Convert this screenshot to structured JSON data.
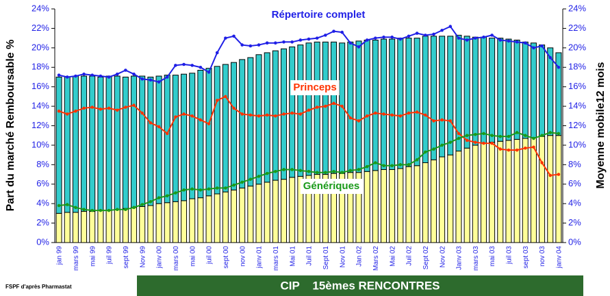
{
  "chart_data": {
    "type": "bar",
    "y_label": "Part du marché Remboursable %",
    "y2_label": "Moyenne mobile12 mois",
    "categories": [
      "jan 99",
      null,
      "mars 99",
      null,
      "mai 99",
      null,
      "juil 99",
      null,
      "sept 99",
      null,
      "Nov 99",
      null,
      "janv 00",
      null,
      "mars 00",
      null,
      "mai 00",
      null,
      "juil 00",
      null,
      "sept 00",
      null,
      "nov 00",
      null,
      "janv 01",
      null,
      "mars 01",
      null,
      "Mai 01",
      null,
      "Juil 01",
      null,
      "Sept 01",
      null,
      "Nov 01",
      null,
      "Jan 02",
      null,
      "Mars 02",
      null,
      "Mai 02",
      null,
      "Juil 02",
      null,
      "Sept 02",
      null,
      "Nov 02",
      null,
      "Janv 03",
      null,
      "mars 03",
      null,
      "mai 03",
      null,
      "juil 03",
      null,
      "sept 03",
      null,
      "nov 03",
      null,
      "janv 04"
    ],
    "ylim": [
      0,
      24
    ],
    "yticks": [
      {
        "value": 0,
        "label": "0%"
      },
      {
        "value": 2,
        "label": "2%"
      },
      {
        "value": 4,
        "label": "4%"
      },
      {
        "value": 6,
        "label": "6%"
      },
      {
        "value": 8,
        "label": "8%"
      },
      {
        "value": 10,
        "label": "10%"
      },
      {
        "value": 12,
        "label": "12%"
      },
      {
        "value": 14,
        "label": "14%"
      },
      {
        "value": 16,
        "label": "16%"
      },
      {
        "value": 18,
        "label": "18%"
      },
      {
        "value": 20,
        "label": "20%"
      },
      {
        "value": 22,
        "label": "22%"
      },
      {
        "value": 24,
        "label": "24%"
      }
    ],
    "y2lim": [
      0,
      24
    ],
    "y2ticks": [
      {
        "value": 0,
        "label": "0%"
      },
      {
        "value": 2,
        "label": "2%"
      },
      {
        "value": 4,
        "label": "4%"
      },
      {
        "value": 6,
        "label": "6%"
      },
      {
        "value": 8,
        "label": "8%"
      },
      {
        "value": 10,
        "label": "10%"
      },
      {
        "value": 12,
        "label": "12%"
      },
      {
        "value": 14,
        "label": "14%"
      },
      {
        "value": 16,
        "label": "16%"
      },
      {
        "value": 18,
        "label": "18%"
      },
      {
        "value": 20,
        "label": "20%"
      },
      {
        "value": 22,
        "label": "22%"
      },
      {
        "value": 24,
        "label": "24%"
      }
    ],
    "stacked": true,
    "series": [
      {
        "type": "bar",
        "color": "#ffff99",
        "values": [
          3.0,
          3.1,
          3.1,
          3.2,
          3.2,
          3.3,
          3.3,
          3.4,
          3.5,
          3.6,
          3.7,
          3.8,
          4.0,
          4.1,
          4.2,
          4.3,
          4.5,
          4.6,
          4.8,
          5.0,
          5.2,
          5.4,
          5.6,
          5.8,
          6.0,
          6.2,
          6.4,
          6.5,
          6.7,
          6.8,
          6.9,
          7.0,
          7.0,
          7.1,
          7.1,
          7.2,
          7.2,
          7.3,
          7.4,
          7.5,
          7.5,
          7.6,
          7.8,
          7.9,
          8.2,
          8.5,
          8.8,
          9.0,
          9.4,
          9.7,
          10.0,
          10.2,
          10.3,
          10.4,
          10.5,
          10.6,
          10.7,
          10.8,
          10.9,
          11.0,
          11.0
        ]
      },
      {
        "type": "bar",
        "color": "#33cccc",
        "values": [
          14.0,
          13.9,
          14.0,
          13.9,
          13.9,
          13.7,
          13.8,
          13.7,
          13.5,
          13.5,
          13.4,
          13.2,
          13.1,
          13.1,
          13.0,
          13.0,
          12.9,
          13.1,
          13.1,
          13.1,
          13.1,
          13.1,
          13.2,
          13.2,
          13.3,
          13.3,
          13.3,
          13.4,
          13.4,
          13.5,
          13.6,
          13.6,
          13.6,
          13.5,
          13.4,
          13.4,
          13.5,
          13.5,
          13.4,
          13.4,
          13.4,
          13.4,
          13.2,
          13.1,
          13.0,
          12.7,
          12.4,
          12.2,
          11.9,
          11.5,
          11.1,
          10.9,
          10.7,
          10.6,
          10.4,
          10.2,
          9.9,
          9.7,
          9.4,
          9.0,
          8.5
        ]
      },
      {
        "type": "line",
        "axis": "y2",
        "name": "Répertoire complet",
        "color": "#1f1fe6",
        "values": [
          17.2,
          17.0,
          17.1,
          17.3,
          17.2,
          17.1,
          17.0,
          17.3,
          17.7,
          17.3,
          16.8,
          16.7,
          16.5,
          17.0,
          18.2,
          18.3,
          18.2,
          18.0,
          17.5,
          19.5,
          21.0,
          21.2,
          20.3,
          20.2,
          20.3,
          20.5,
          20.5,
          20.6,
          20.6,
          20.8,
          20.9,
          21.0,
          21.3,
          21.7,
          21.6,
          20.5,
          20.1,
          20.8,
          21.0,
          21.1,
          21.1,
          20.9,
          21.2,
          21.5,
          21.3,
          21.4,
          21.8,
          22.2,
          21.0,
          20.8,
          21.0,
          21.1,
          21.3,
          20.8,
          20.7,
          20.6,
          20.5,
          20.0,
          20.2,
          19.0,
          18.0
        ]
      },
      {
        "type": "line",
        "axis": "y2",
        "name": "Princeps",
        "color": "#ff3300",
        "values": [
          13.5,
          13.2,
          13.5,
          13.8,
          13.9,
          13.7,
          13.8,
          13.6,
          13.9,
          14.1,
          13.3,
          12.3,
          11.9,
          11.2,
          12.9,
          13.2,
          13.0,
          12.6,
          12.2,
          14.6,
          15.0,
          13.8,
          13.2,
          13.1,
          13.0,
          13.1,
          13.0,
          13.2,
          13.3,
          13.2,
          13.6,
          13.9,
          14.0,
          14.3,
          14.0,
          12.8,
          12.5,
          13.0,
          13.3,
          13.2,
          13.1,
          13.0,
          13.3,
          13.4,
          13.1,
          12.5,
          12.6,
          12.5,
          11.2,
          10.5,
          10.3,
          10.2,
          10.2,
          9.6,
          9.5,
          9.5,
          9.7,
          9.8,
          8.2,
          6.9,
          7.0
        ]
      },
      {
        "type": "line",
        "axis": "y2",
        "name": "Génériques",
        "color": "#1a9a1a",
        "values": [
          3.8,
          3.9,
          3.6,
          3.4,
          3.3,
          3.3,
          3.3,
          3.4,
          3.4,
          3.6,
          3.9,
          4.2,
          4.6,
          4.8,
          5.1,
          5.4,
          5.5,
          5.4,
          5.5,
          5.6,
          5.6,
          5.9,
          6.2,
          6.5,
          6.8,
          7.1,
          7.3,
          7.5,
          7.5,
          7.4,
          7.3,
          7.2,
          7.2,
          7.3,
          7.2,
          7.4,
          7.5,
          7.8,
          8.2,
          7.9,
          7.9,
          8.0,
          8.0,
          8.5,
          9.3,
          9.6,
          10.0,
          10.3,
          10.7,
          11.0,
          11.1,
          11.2,
          11.0,
          10.9,
          10.9,
          11.3,
          11.0,
          10.7,
          11.0,
          11.3,
          11.2
        ]
      }
    ]
  },
  "footer": {
    "source": "FSPF d'après Pharmastat",
    "banner": "CIP    15èmes RENCONTRES"
  }
}
